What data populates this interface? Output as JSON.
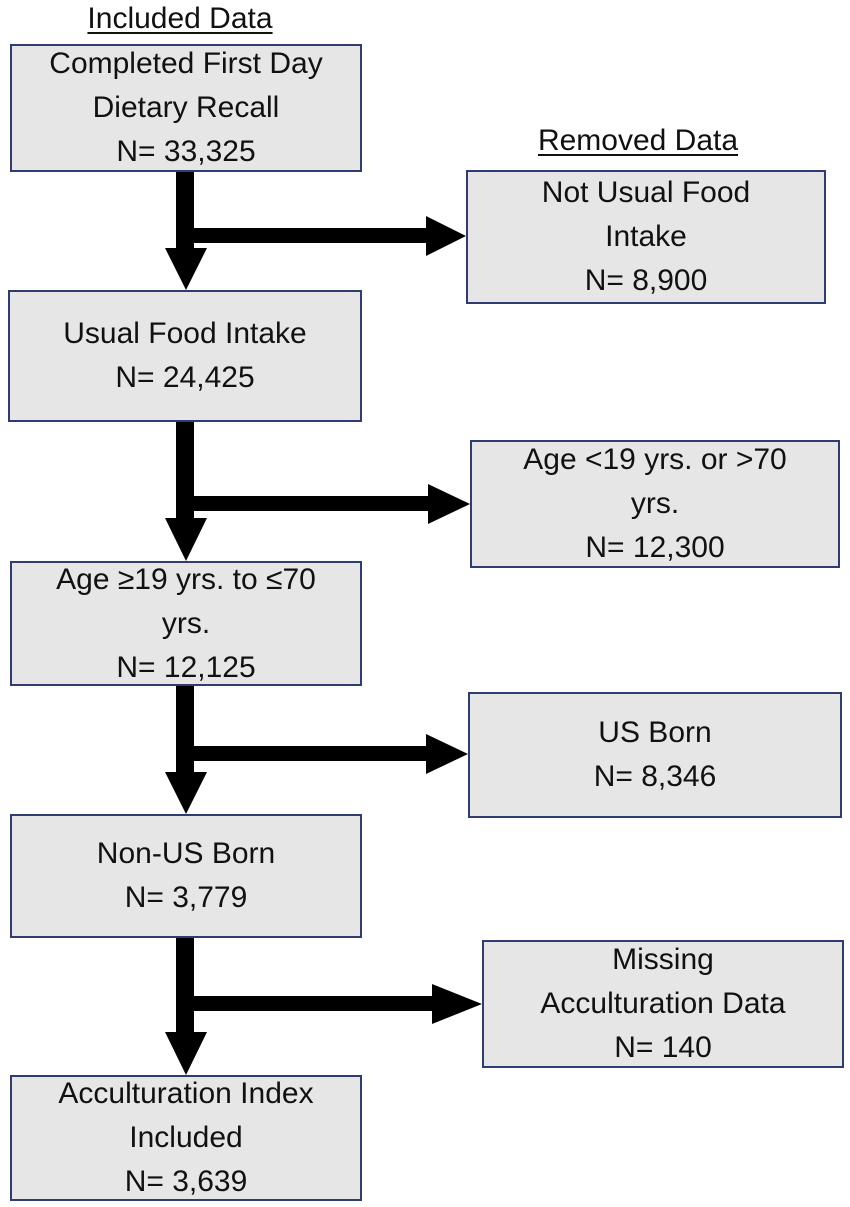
{
  "headings": {
    "included": "Included Data",
    "removed": "Removed Data"
  },
  "included_boxes": [
    {
      "lines": [
        "Completed First Day",
        "Dietary Recall"
      ],
      "count": "N= 33,325"
    },
    {
      "lines": [
        "Usual Food Intake"
      ],
      "count": "N= 24,425"
    },
    {
      "lines": [
        "Age ≥19 yrs. to ≤70",
        "yrs."
      ],
      "count": "N= 12,125"
    },
    {
      "lines": [
        "Non-US Born"
      ],
      "count": "N= 3,779"
    },
    {
      "lines": [
        "Acculturation Index",
        "Included"
      ],
      "count": "N= 3,639"
    }
  ],
  "removed_boxes": [
    {
      "lines": [
        "Not Usual Food",
        "Intake"
      ],
      "count": "N= 8,900"
    },
    {
      "lines": [
        "Age <19 yrs. or >70",
        "yrs."
      ],
      "count": "N= 12,300"
    },
    {
      "lines": [
        "US Born"
      ],
      "count": "N= 8,346"
    },
    {
      "lines": [
        "Missing",
        "Acculturation Data"
      ],
      "count": "N= 140"
    }
  ],
  "colors": {
    "box_fill": "#e6e6e6",
    "box_border": "#2f3b73",
    "arrow": "#000000"
  }
}
